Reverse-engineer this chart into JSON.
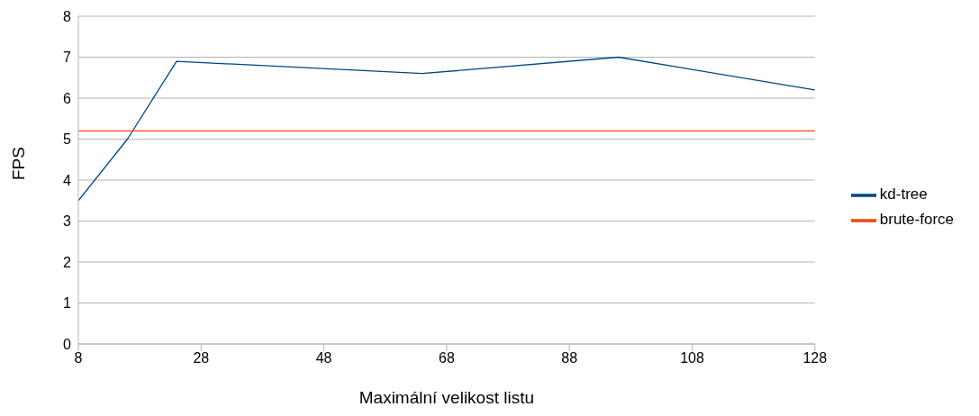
{
  "chart_data": {
    "type": "line",
    "xlabel": "Maximální velikost listu",
    "ylabel": "FPS",
    "xlim": [
      8,
      128
    ],
    "xticks": [
      8,
      28,
      48,
      68,
      88,
      108,
      128
    ],
    "ylim": [
      0,
      8
    ],
    "yticks": [
      0,
      1,
      2,
      3,
      4,
      5,
      6,
      7,
      8
    ],
    "grid": "y",
    "legend": "right",
    "marker": "none",
    "line_style": "solid",
    "series": [
      {
        "name": "kd-tree",
        "color": "#004586",
        "x": [
          8,
          16,
          24,
          64,
          96,
          128
        ],
        "values": [
          3.5,
          5,
          6.9,
          6.6,
          7,
          6.2
        ]
      },
      {
        "name": "brute-force",
        "color": "#ff420e",
        "x": [
          8,
          128
        ],
        "values": [
          5.2,
          5.2
        ]
      }
    ]
  }
}
